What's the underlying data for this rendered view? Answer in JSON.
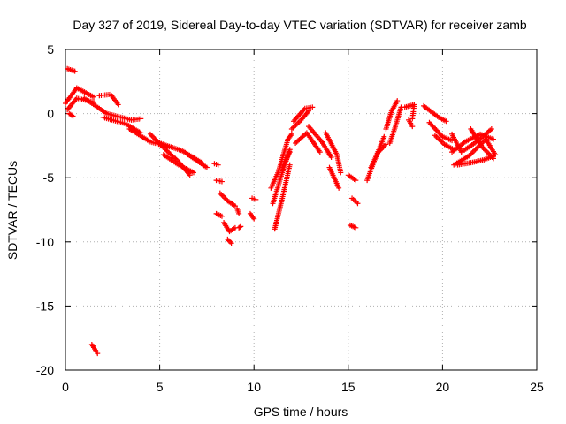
{
  "chart_data": {
    "type": "scatter",
    "title": "Day 327 of 2019, Sidereal Day-to-day VTEC variation (SDTVAR) for receiver zamb",
    "xlabel": "GPS time / hours",
    "ylabel": "SDTVAR / TECUs",
    "xlim": [
      0,
      25
    ],
    "ylim": [
      -20,
      5
    ],
    "xticks": [
      0,
      5,
      10,
      15,
      20,
      25
    ],
    "yticks": [
      -20,
      -15,
      -10,
      -5,
      0,
      5
    ],
    "grid": true,
    "marker": "+",
    "color": "#ff0000",
    "series": [
      {
        "name": "SDTVAR",
        "segments": [
          {
            "x": [
              0.1,
              0.5
            ],
            "y": [
              3.5,
              3.3
            ]
          },
          {
            "x": [
              0.0,
              0.6,
              1.5
            ],
            "y": [
              0.8,
              2.0,
              1.3
            ]
          },
          {
            "x": [
              0.1,
              0.6,
              1.5
            ],
            "y": [
              0.3,
              1.2,
              0.9
            ]
          },
          {
            "x": [
              0.2,
              0.4
            ],
            "y": [
              0.0,
              -0.2
            ]
          },
          {
            "x": [
              1.0,
              2.2,
              3.5,
              4.0
            ],
            "y": [
              1.2,
              0.0,
              -0.5,
              -0.4
            ]
          },
          {
            "x": [
              1.8,
              2.4,
              2.8
            ],
            "y": [
              1.4,
              1.5,
              0.7
            ]
          },
          {
            "x": [
              2.0,
              3.2,
              4.0
            ],
            "y": [
              -0.3,
              -0.8,
              -1.5
            ]
          },
          {
            "x": [
              3.4,
              4.5,
              5.5
            ],
            "y": [
              -1.2,
              -2.2,
              -2.6
            ]
          },
          {
            "x": [
              4.5,
              5.3,
              5.9,
              6.6
            ],
            "y": [
              -1.6,
              -2.8,
              -3.6,
              -4.8
            ]
          },
          {
            "x": [
              5.0,
              6.2,
              7.2
            ],
            "y": [
              -2.3,
              -2.9,
              -3.8
            ]
          },
          {
            "x": [
              5.2,
              6.0,
              6.8
            ],
            "y": [
              -3.2,
              -4.0,
              -4.6
            ]
          },
          {
            "x": [
              6.5,
              7.5
            ],
            "y": [
              -3.2,
              -4.2
            ]
          },
          {
            "x": [
              7.9,
              8.1
            ],
            "y": [
              -3.9,
              -4.0
            ]
          },
          {
            "x": [
              8.0,
              8.3
            ],
            "y": [
              -5.2,
              -5.3
            ]
          },
          {
            "x": [
              8.2,
              8.6,
              9.0
            ],
            "y": [
              -6.2,
              -6.8,
              -7.2
            ]
          },
          {
            "x": [
              8.0,
              8.3
            ],
            "y": [
              -7.8,
              -8.0
            ]
          },
          {
            "x": [
              8.4,
              8.7,
              9.0
            ],
            "y": [
              -8.5,
              -9.2,
              -8.9
            ]
          },
          {
            "x": [
              8.6,
              8.8
            ],
            "y": [
              -9.8,
              -10.1
            ]
          },
          {
            "x": [
              9.1,
              9.2
            ],
            "y": [
              -7.4,
              -7.8
            ]
          },
          {
            "x": [
              9.2,
              9.3
            ],
            "y": [
              -8.9,
              -8.8
            ]
          },
          {
            "x": [
              9.9,
              10.1
            ],
            "y": [
              -6.6,
              -6.7
            ]
          },
          {
            "x": [
              9.8,
              10.0
            ],
            "y": [
              -7.8,
              -8.2
            ]
          },
          {
            "x": [
              10.9,
              11.3,
              11.8,
              12.0
            ],
            "y": [
              -5.8,
              -4.5,
              -2.0,
              -1.6
            ]
          },
          {
            "x": [
              11.0,
              11.5,
              11.9
            ],
            "y": [
              -7.0,
              -4.6,
              -2.8
            ]
          },
          {
            "x": [
              11.1,
              11.5,
              11.9
            ],
            "y": [
              -9.0,
              -6.6,
              -4.0
            ]
          },
          {
            "x": [
              11.5,
              11.7,
              11.9
            ],
            "y": [
              -4.2,
              -3.6,
              -3.0
            ]
          },
          {
            "x": [
              12.0,
              12.5,
              12.9
            ],
            "y": [
              -1.2,
              -0.5,
              0.2
            ]
          },
          {
            "x": [
              12.1,
              12.7,
              13.1
            ],
            "y": [
              -0.6,
              0.4,
              0.5
            ]
          },
          {
            "x": [
              12.2,
              12.8,
              13.5
            ],
            "y": [
              -2.3,
              -1.5,
              -3.0
            ]
          },
          {
            "x": [
              12.9,
              13.6,
              14.1
            ],
            "y": [
              -1.0,
              -2.2,
              -3.4
            ]
          },
          {
            "x": [
              13.8,
              14.4,
              14.6
            ],
            "y": [
              -1.5,
              -3.2,
              -4.6
            ]
          },
          {
            "x": [
              14.0,
              14.5
            ],
            "y": [
              -4.2,
              -5.8
            ]
          },
          {
            "x": [
              15.0,
              15.4
            ],
            "y": [
              -4.8,
              -5.2
            ]
          },
          {
            "x": [
              15.2,
              15.5
            ],
            "y": [
              -6.6,
              -7.0
            ]
          },
          {
            "x": [
              15.1,
              15.4
            ],
            "y": [
              -8.7,
              -8.9
            ]
          },
          {
            "x": [
              16.0,
              16.4,
              16.9
            ],
            "y": [
              -5.2,
              -3.6,
              -1.8
            ]
          },
          {
            "x": [
              16.2,
              16.6,
              17.0
            ],
            "y": [
              -4.2,
              -3.0,
              -2.4
            ]
          },
          {
            "x": [
              17.0,
              17.3,
              17.6
            ],
            "y": [
              -1.2,
              0.2,
              1.0
            ]
          },
          {
            "x": [
              17.2,
              17.5,
              17.8
            ],
            "y": [
              -2.3,
              -1.0,
              0.5
            ]
          },
          {
            "x": [
              18.0,
              18.5,
              18.4
            ],
            "y": [
              0.5,
              0.7,
              -0.4
            ]
          },
          {
            "x": [
              18.2,
              18.4
            ],
            "y": [
              -0.5,
              -1.0
            ]
          },
          {
            "x": [
              19.0,
              19.8,
              20.2
            ],
            "y": [
              0.6,
              -0.3,
              -0.6
            ]
          },
          {
            "x": [
              19.3,
              20.0,
              20.5
            ],
            "y": [
              -0.7,
              -1.8,
              -2.1
            ]
          },
          {
            "x": [
              19.6,
              20.1,
              20.6
            ],
            "y": [
              -1.7,
              -2.4,
              -2.8
            ]
          },
          {
            "x": [
              20.5,
              21.0,
              21.8,
              22.6
            ],
            "y": [
              -1.6,
              -3.0,
              -2.2,
              -1.2
            ]
          },
          {
            "x": [
              20.5,
              21.2,
              22.0,
              22.7
            ],
            "y": [
              -3.0,
              -2.2,
              -1.6,
              -2.0
            ]
          },
          {
            "x": [
              20.6,
              21.4,
              22.3,
              22.8
            ],
            "y": [
              -4.0,
              -3.3,
              -2.0,
              -3.2
            ]
          },
          {
            "x": [
              20.8,
              21.6,
              22.2,
              22.7
            ],
            "y": [
              -4.0,
              -3.8,
              -3.6,
              -3.3
            ]
          },
          {
            "x": [
              21.5,
              22.1,
              22.7
            ],
            "y": [
              -1.2,
              -2.6,
              -3.5
            ]
          },
          {
            "x": [
              1.4,
              1.7
            ],
            "y": [
              -18.0,
              -18.7
            ]
          }
        ]
      }
    ]
  }
}
